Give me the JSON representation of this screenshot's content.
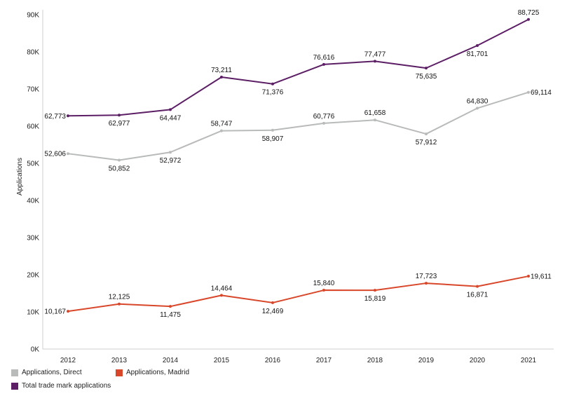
{
  "chart_data": {
    "type": "line",
    "ylabel": "Applications",
    "xlabel": "",
    "categories": [
      "2012",
      "2013",
      "2014",
      "2015",
      "2016",
      "2017",
      "2018",
      "2019",
      "2020",
      "2021"
    ],
    "ylim": [
      0,
      90000
    ],
    "yticks": [
      0,
      10000,
      20000,
      30000,
      40000,
      50000,
      60000,
      70000,
      80000,
      90000
    ],
    "ytick_labels": [
      "0K",
      "10K",
      "20K",
      "30K",
      "40K",
      "50K",
      "60K",
      "70K",
      "80K",
      "90K"
    ],
    "grid": false,
    "legend_position": "bottom-left",
    "series": [
      {
        "name": "Applications, Direct",
        "color": "#b8bbb9",
        "values": [
          52606,
          50852,
          52972,
          58747,
          58907,
          60776,
          61658,
          57912,
          64830,
          69114
        ],
        "labels": [
          "52,606",
          "50,852",
          "52,972",
          "58,747",
          "58,907",
          "60,776",
          "61,658",
          "57,912",
          "64,830",
          "69,114"
        ]
      },
      {
        "name": "Applications, Madrid",
        "color": "#d9472b",
        "values": [
          10167,
          12125,
          11475,
          14464,
          12469,
          15840,
          15819,
          17723,
          16871,
          19611
        ],
        "labels": [
          "10,167",
          "12,125",
          "11,475",
          "14,464",
          "12,469",
          "15,840",
          "15,819",
          "17,723",
          "16,871",
          "19,611"
        ]
      },
      {
        "name": "Total trade mark applications",
        "color": "#5c1f65",
        "values": [
          62773,
          62977,
          64447,
          73211,
          71376,
          76616,
          77477,
          75635,
          81701,
          88725
        ],
        "labels": [
          "62,773",
          "62,977",
          "64,447",
          "73,211",
          "71,376",
          "76,616",
          "77,477",
          "75,635",
          "81,701",
          "88,725"
        ]
      }
    ]
  }
}
